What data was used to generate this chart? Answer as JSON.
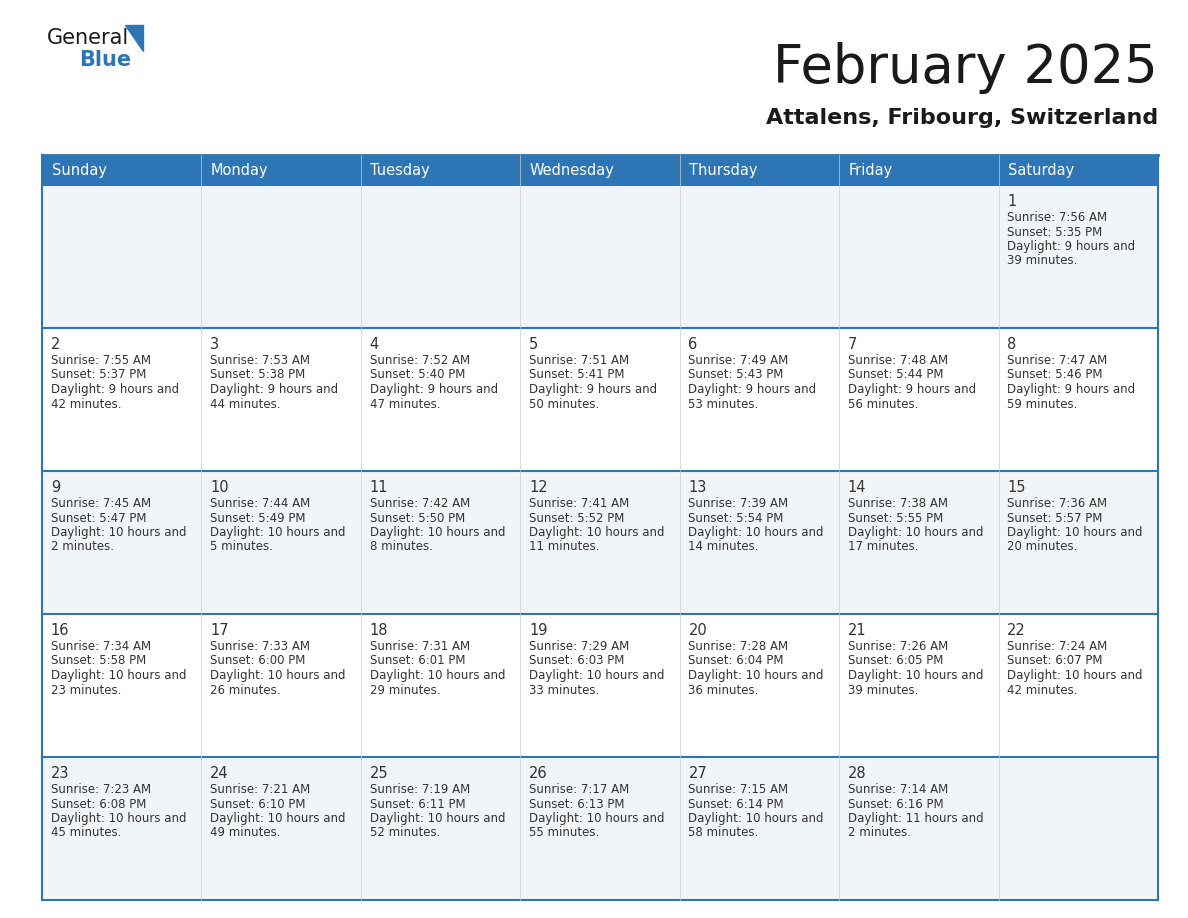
{
  "title": "February 2025",
  "subtitle": "Attalens, Fribourg, Switzerland",
  "days_of_week": [
    "Sunday",
    "Monday",
    "Tuesday",
    "Wednesday",
    "Thursday",
    "Friday",
    "Saturday"
  ],
  "header_bg": "#2e75b6",
  "header_text": "#ffffff",
  "cell_bg_odd": "#f2f5f8",
  "cell_bg_even": "#ffffff",
  "border_color": "#2e75b6",
  "text_color": "#333333",
  "logo_general_color": "#1a1a1a",
  "logo_blue_color": "#2e75b6",
  "calendar_data": [
    {
      "day": 1,
      "col": 6,
      "row": 0,
      "sunrise": "7:56 AM",
      "sunset": "5:35 PM",
      "daylight": "9 hours and 39 minutes."
    },
    {
      "day": 2,
      "col": 0,
      "row": 1,
      "sunrise": "7:55 AM",
      "sunset": "5:37 PM",
      "daylight": "9 hours and 42 minutes."
    },
    {
      "day": 3,
      "col": 1,
      "row": 1,
      "sunrise": "7:53 AM",
      "sunset": "5:38 PM",
      "daylight": "9 hours and 44 minutes."
    },
    {
      "day": 4,
      "col": 2,
      "row": 1,
      "sunrise": "7:52 AM",
      "sunset": "5:40 PM",
      "daylight": "9 hours and 47 minutes."
    },
    {
      "day": 5,
      "col": 3,
      "row": 1,
      "sunrise": "7:51 AM",
      "sunset": "5:41 PM",
      "daylight": "9 hours and 50 minutes."
    },
    {
      "day": 6,
      "col": 4,
      "row": 1,
      "sunrise": "7:49 AM",
      "sunset": "5:43 PM",
      "daylight": "9 hours and 53 minutes."
    },
    {
      "day": 7,
      "col": 5,
      "row": 1,
      "sunrise": "7:48 AM",
      "sunset": "5:44 PM",
      "daylight": "9 hours and 56 minutes."
    },
    {
      "day": 8,
      "col": 6,
      "row": 1,
      "sunrise": "7:47 AM",
      "sunset": "5:46 PM",
      "daylight": "9 hours and 59 minutes."
    },
    {
      "day": 9,
      "col": 0,
      "row": 2,
      "sunrise": "7:45 AM",
      "sunset": "5:47 PM",
      "daylight": "10 hours and 2 minutes."
    },
    {
      "day": 10,
      "col": 1,
      "row": 2,
      "sunrise": "7:44 AM",
      "sunset": "5:49 PM",
      "daylight": "10 hours and 5 minutes."
    },
    {
      "day": 11,
      "col": 2,
      "row": 2,
      "sunrise": "7:42 AM",
      "sunset": "5:50 PM",
      "daylight": "10 hours and 8 minutes."
    },
    {
      "day": 12,
      "col": 3,
      "row": 2,
      "sunrise": "7:41 AM",
      "sunset": "5:52 PM",
      "daylight": "10 hours and 11 minutes."
    },
    {
      "day": 13,
      "col": 4,
      "row": 2,
      "sunrise": "7:39 AM",
      "sunset": "5:54 PM",
      "daylight": "10 hours and 14 minutes."
    },
    {
      "day": 14,
      "col": 5,
      "row": 2,
      "sunrise": "7:38 AM",
      "sunset": "5:55 PM",
      "daylight": "10 hours and 17 minutes."
    },
    {
      "day": 15,
      "col": 6,
      "row": 2,
      "sunrise": "7:36 AM",
      "sunset": "5:57 PM",
      "daylight": "10 hours and 20 minutes."
    },
    {
      "day": 16,
      "col": 0,
      "row": 3,
      "sunrise": "7:34 AM",
      "sunset": "5:58 PM",
      "daylight": "10 hours and 23 minutes."
    },
    {
      "day": 17,
      "col": 1,
      "row": 3,
      "sunrise": "7:33 AM",
      "sunset": "6:00 PM",
      "daylight": "10 hours and 26 minutes."
    },
    {
      "day": 18,
      "col": 2,
      "row": 3,
      "sunrise": "7:31 AM",
      "sunset": "6:01 PM",
      "daylight": "10 hours and 29 minutes."
    },
    {
      "day": 19,
      "col": 3,
      "row": 3,
      "sunrise": "7:29 AM",
      "sunset": "6:03 PM",
      "daylight": "10 hours and 33 minutes."
    },
    {
      "day": 20,
      "col": 4,
      "row": 3,
      "sunrise": "7:28 AM",
      "sunset": "6:04 PM",
      "daylight": "10 hours and 36 minutes."
    },
    {
      "day": 21,
      "col": 5,
      "row": 3,
      "sunrise": "7:26 AM",
      "sunset": "6:05 PM",
      "daylight": "10 hours and 39 minutes."
    },
    {
      "day": 22,
      "col": 6,
      "row": 3,
      "sunrise": "7:24 AM",
      "sunset": "6:07 PM",
      "daylight": "10 hours and 42 minutes."
    },
    {
      "day": 23,
      "col": 0,
      "row": 4,
      "sunrise": "7:23 AM",
      "sunset": "6:08 PM",
      "daylight": "10 hours and 45 minutes."
    },
    {
      "day": 24,
      "col": 1,
      "row": 4,
      "sunrise": "7:21 AM",
      "sunset": "6:10 PM",
      "daylight": "10 hours and 49 minutes."
    },
    {
      "day": 25,
      "col": 2,
      "row": 4,
      "sunrise": "7:19 AM",
      "sunset": "6:11 PM",
      "daylight": "10 hours and 52 minutes."
    },
    {
      "day": 26,
      "col": 3,
      "row": 4,
      "sunrise": "7:17 AM",
      "sunset": "6:13 PM",
      "daylight": "10 hours and 55 minutes."
    },
    {
      "day": 27,
      "col": 4,
      "row": 4,
      "sunrise": "7:15 AM",
      "sunset": "6:14 PM",
      "daylight": "10 hours and 58 minutes."
    },
    {
      "day": 28,
      "col": 5,
      "row": 4,
      "sunrise": "7:14 AM",
      "sunset": "6:16 PM",
      "daylight": "11 hours and 2 minutes."
    }
  ]
}
